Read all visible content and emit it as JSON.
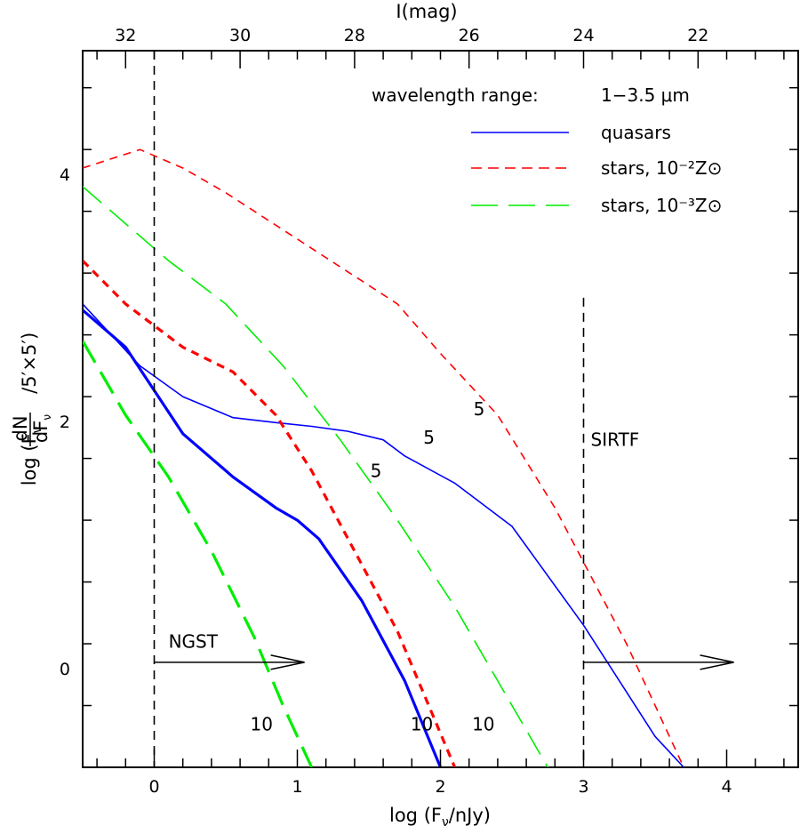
{
  "chart_data": {
    "type": "line",
    "xlabel": "log (F_ν/nJy)",
    "ylabel": "log (F_ν dN/dF_ν /5′×5′)",
    "top_xlabel": "I(mag)",
    "xlim": [
      -0.5,
      4.5
    ],
    "ylim": [
      -0.8,
      5.0
    ],
    "x_ticks": [
      "0",
      "1",
      "2",
      "3",
      "4"
    ],
    "x_tick_values": [
      0,
      1,
      2,
      3,
      4
    ],
    "y_ticks": [
      "0",
      "2",
      "4"
    ],
    "y_tick_values": [
      0,
      2,
      4
    ],
    "top_ticks": [
      "32",
      "30",
      "28",
      "26",
      "24",
      "22"
    ],
    "top_tick_mags": [
      32,
      30,
      28,
      26,
      24,
      22
    ],
    "mag_at_log_zero": 31.5,
    "legend": {
      "header_label": "wavelength range:",
      "header_value": "1−3.5 μm",
      "items": [
        {
          "label": "quasars",
          "color": "#0000ff",
          "dash": "solid"
        },
        {
          "label": "stars, 10⁻²Z⊙",
          "color": "#ff0000",
          "dash": "short-dash"
        },
        {
          "label": "stars, 10⁻³Z⊙",
          "color": "#00ee00",
          "dash": "long-dash"
        }
      ]
    },
    "series": [
      {
        "name": "quasars",
        "label": "5",
        "color": "#0000ff",
        "dash": "solid",
        "width": "thin",
        "x": [
          -0.5,
          -0.1,
          0.2,
          0.55,
          0.85,
          1.1,
          1.35,
          1.6,
          1.75,
          2.1,
          2.5,
          3.0,
          3.5,
          3.7
        ],
        "y": [
          2.95,
          2.45,
          2.2,
          2.03,
          1.99,
          1.96,
          1.92,
          1.85,
          1.72,
          1.5,
          1.15,
          0.35,
          -0.55,
          -0.8
        ]
      },
      {
        "name": "quasars",
        "label": "10",
        "color": "#0000ff",
        "dash": "solid",
        "width": "thick",
        "x": [
          -0.5,
          -0.2,
          0.2,
          0.55,
          0.85,
          1.0,
          1.15,
          1.45,
          1.75,
          2.0
        ],
        "y": [
          2.9,
          2.6,
          1.9,
          1.55,
          1.3,
          1.2,
          1.05,
          0.55,
          -0.1,
          -0.8
        ]
      },
      {
        "name": "stars, 10⁻²Z⊙",
        "label": "5",
        "color": "#ff0000",
        "dash": "short-dash",
        "width": "thin",
        "x": [
          -0.5,
          -0.1,
          0.2,
          0.5,
          0.9,
          1.3,
          1.7,
          2.0,
          2.4,
          2.8,
          3.3,
          3.7
        ],
        "y": [
          4.05,
          4.2,
          4.05,
          3.85,
          3.55,
          3.25,
          2.95,
          2.55,
          2.05,
          1.3,
          0.2,
          -0.8
        ]
      },
      {
        "name": "stars, 10⁻²Z⊙",
        "label": "10",
        "color": "#ff0000",
        "dash": "short-dash",
        "width": "thick",
        "x": [
          -0.5,
          -0.2,
          0.2,
          0.55,
          0.85,
          1.1,
          1.4,
          1.7,
          2.1
        ],
        "y": [
          3.3,
          2.95,
          2.6,
          2.4,
          2.05,
          1.6,
          0.95,
          0.3,
          -0.8
        ]
      },
      {
        "name": "stars, 10⁻³Z⊙",
        "label": "5",
        "color": "#00ee00",
        "dash": "long-dash",
        "width": "thin",
        "x": [
          -0.5,
          -0.2,
          0.1,
          0.5,
          0.9,
          1.3,
          1.7,
          2.1,
          2.5,
          2.75
        ],
        "y": [
          3.9,
          3.6,
          3.3,
          2.95,
          2.45,
          1.85,
          1.2,
          0.5,
          -0.3,
          -0.8
        ]
      },
      {
        "name": "stars, 10⁻³Z⊙",
        "label": "10",
        "color": "#00ee00",
        "dash": "long-dash",
        "width": "thick",
        "x": [
          -0.5,
          -0.2,
          0.1,
          0.4,
          0.7,
          0.9,
          1.1
        ],
        "y": [
          2.65,
          2.05,
          1.55,
          0.95,
          0.25,
          -0.3,
          -0.8
        ]
      }
    ],
    "vertical_lines": [
      {
        "x": 0,
        "y_from": -0.8,
        "y_to": 5.0
      },
      {
        "x": 3,
        "y_from": -0.8,
        "y_to": 3.0
      }
    ],
    "arrows": [
      {
        "label": "NGST",
        "x_from": 0,
        "x_to": 1.05,
        "y": 0.05
      },
      {
        "label": "SIRTF",
        "x_from": 3,
        "x_to": 4.05,
        "y": 0.05
      }
    ],
    "curve_labels": [
      {
        "text": "5",
        "x": 2.27,
        "y": 2.1
      },
      {
        "text": "5",
        "x": 1.92,
        "y": 1.87
      },
      {
        "text": "5",
        "x": 1.55,
        "y": 1.6
      },
      {
        "text": "10",
        "x": 0.75,
        "y": -0.45
      },
      {
        "text": "10",
        "x": 1.87,
        "y": -0.45
      },
      {
        "text": "10",
        "x": 2.3,
        "y": -0.45
      }
    ],
    "annotation_positions": {
      "NGST": {
        "x": 0.1,
        "y": 0.22
      },
      "SIRTF": {
        "x": 3.05,
        "y": 1.85
      }
    }
  }
}
